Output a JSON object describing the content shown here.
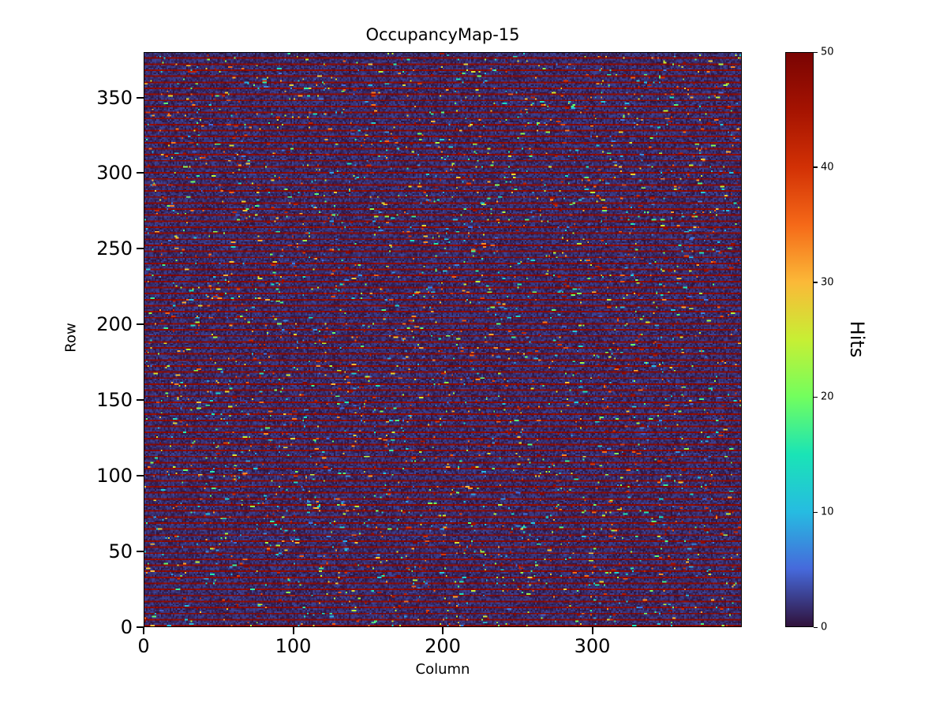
{
  "chart_data": {
    "type": "heatmap",
    "title": "OccupancyMap-15",
    "xlabel": "Column",
    "ylabel": "Row",
    "colorbar_label": "Hits",
    "x_range": [
      0,
      400
    ],
    "y_range": [
      0,
      380
    ],
    "value_range": [
      0,
      50
    ],
    "x_ticks": [
      0,
      100,
      200,
      300
    ],
    "y_ticks": [
      0,
      50,
      100,
      150,
      200,
      250,
      300,
      350
    ],
    "colorbar_ticks": [
      0,
      10,
      20,
      30,
      40,
      50
    ],
    "grid": {
      "cols": 400,
      "rows": 380
    },
    "colormap": {
      "name": "turbo",
      "stops": [
        {
          "t": 0.0,
          "color": "#30123b"
        },
        {
          "t": 0.1,
          "color": "#4669db"
        },
        {
          "t": 0.2,
          "color": "#26bce1"
        },
        {
          "t": 0.3,
          "color": "#1ae4b6"
        },
        {
          "t": 0.4,
          "color": "#72fe5e"
        },
        {
          "t": 0.5,
          "color": "#c7ef34"
        },
        {
          "t": 0.6,
          "color": "#fbb938"
        },
        {
          "t": 0.7,
          "color": "#f56918"
        },
        {
          "t": 0.8,
          "color": "#d23105"
        },
        {
          "t": 0.9,
          "color": "#a51301"
        },
        {
          "t": 1.0,
          "color": "#7a0403"
        }
      ]
    },
    "pattern": {
      "description": "Dark low-occupancy background (~0-3 hits) with saturated hot rows of ~50 hits every 4th row and random colored speckle hits (4-50) scattered across the matrix.",
      "background_value_max": 3,
      "hot_row_period": 4,
      "hot_row_value": 50,
      "speckle_probability": 0.022,
      "seed": 15
    },
    "legend_position": "colorbar-right",
    "grid_lines": false
  }
}
